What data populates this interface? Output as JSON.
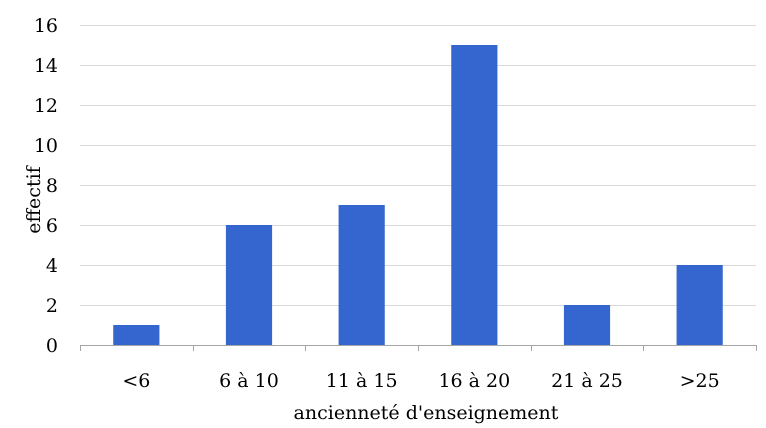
{
  "chart_data": {
    "type": "bar",
    "categories": [
      "<6",
      "6 à 10",
      "11 à 15",
      "16 à 20",
      "21 à 25",
      ">25"
    ],
    "values": [
      1,
      6,
      7,
      15,
      2,
      4
    ],
    "xlabel": "ancienneté d'enseignement",
    "ylabel": "effectif",
    "ylim": [
      0,
      16
    ],
    "yticks": [
      0,
      2,
      4,
      6,
      8,
      10,
      12,
      14,
      16
    ],
    "grid": true,
    "bar_color": "#3566CF",
    "grid_color": "#D9D9D9",
    "axis_color": "#A6A6A6"
  }
}
